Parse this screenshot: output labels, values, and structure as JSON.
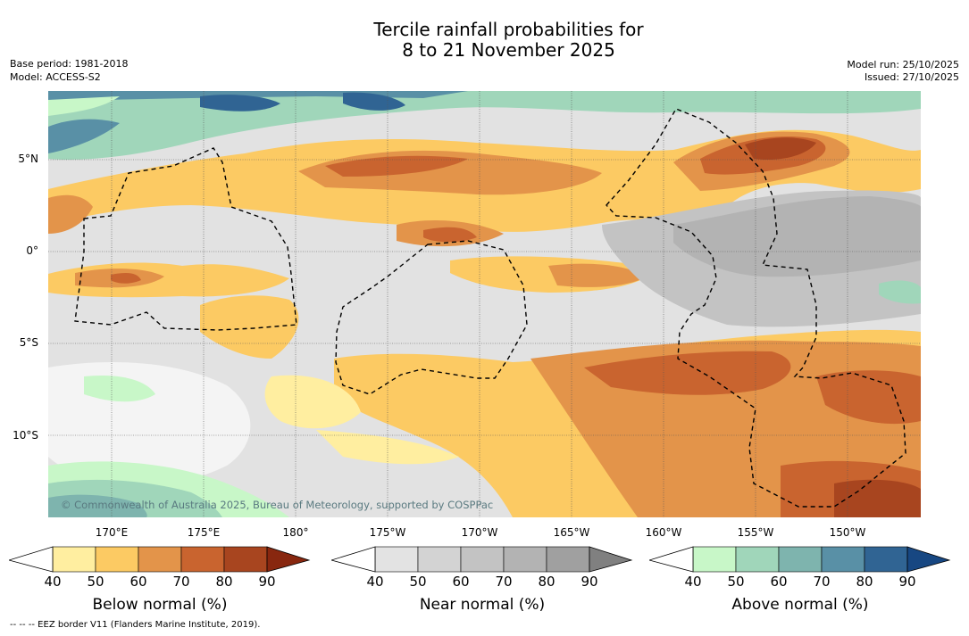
{
  "title_line1": "Tercile rainfall probabilities for",
  "title_line2": "8 to 21 November 2025",
  "base_period": "Base period: 1981-2018",
  "model": "Model: ACCESS-S2",
  "model_run": "Model run: 25/10/2025",
  "issued": "Issued: 27/10/2025",
  "map": {
    "copyright": "© Commonwealth of Australia 2025, Bureau of Meteorology, supported by COSPPac",
    "lat_labels": [
      "5°N",
      "0°",
      "5°S",
      "10°S"
    ],
    "lon_labels": [
      "170°E",
      "175°E",
      "180°",
      "175°W",
      "170°W",
      "165°W",
      "160°W",
      "155°W",
      "150°W"
    ]
  },
  "colorbars": [
    {
      "title": "Below normal (%)",
      "ticks": [
        "40",
        "50",
        "60",
        "70",
        "80",
        "90"
      ],
      "colors": [
        "#ffeea0",
        "#fcca63",
        "#e3944a",
        "#c9642f",
        "#a8451f",
        "#88270f"
      ]
    },
    {
      "title": "Near normal (%)",
      "ticks": [
        "40",
        "50",
        "60",
        "70",
        "80",
        "90"
      ],
      "colors": [
        "#e3e3e3",
        "#d3d3d3",
        "#c3c3c3",
        "#b3b3b3",
        "#a0a0a0",
        "#808080"
      ]
    },
    {
      "title": "Above normal (%)",
      "ticks": [
        "40",
        "50",
        "60",
        "70",
        "80",
        "90"
      ],
      "colors": [
        "#c8f7c8",
        "#a0d6ba",
        "#7eb4ae",
        "#5990a6",
        "#306493",
        "#174782"
      ]
    }
  ],
  "footnote": "-- -- -- EEZ border V11 (Flanders Marine Institute, 2019)."
}
